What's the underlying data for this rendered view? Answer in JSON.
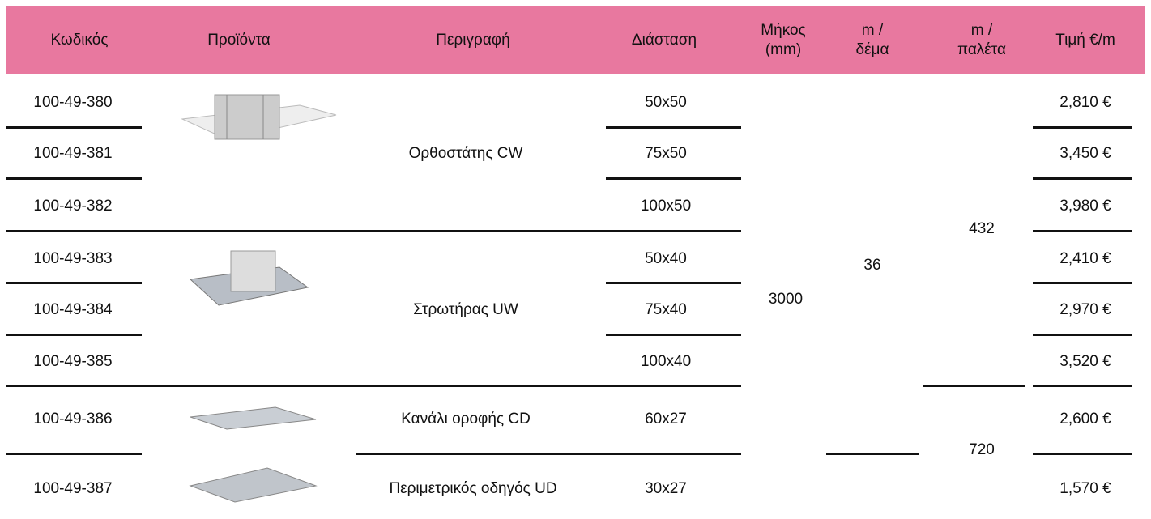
{
  "header": [
    "Κωδικός",
    "Προϊόντα",
    "Περιγραφή",
    "Διάσταση",
    "Μήκος (mm)",
    "m / δέμα",
    "m / παλέτα",
    "Τιμή €/m"
  ],
  "rows": [
    {
      "code": "100-49-380",
      "dimension": "50x50",
      "price": "2,810 €"
    },
    {
      "code": "100-49-381",
      "dimension": "75x50",
      "price": "3,450 €"
    },
    {
      "code": "100-49-382",
      "dimension": "100x50",
      "price": "3,980 €"
    },
    {
      "code": "100-49-383",
      "dimension": "50x40",
      "price": "2,410 €"
    },
    {
      "code": "100-49-384",
      "dimension": "75x40",
      "price": "2,970 €"
    },
    {
      "code": "100-49-385",
      "dimension": "100x40",
      "price": "3,520 €"
    },
    {
      "code": "100-49-386",
      "dimension": "60x27",
      "price": "2,600 €"
    },
    {
      "code": "100-49-387",
      "dimension": "30x27",
      "price": "1,570 €"
    }
  ],
  "descriptions": [
    "Ορθοστάτης CW",
    "Στρωτήρας UW",
    "Κανάλι οροφής CD",
    "Περιμετρικός οδηγός UD"
  ],
  "length": "3000",
  "bundle": "36",
  "pallet": [
    "432",
    "720"
  ]
}
